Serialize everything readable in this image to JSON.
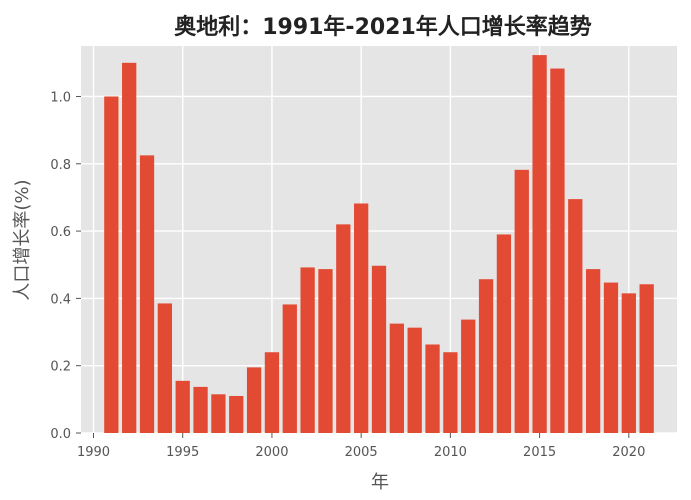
{
  "chart_data": {
    "type": "bar",
    "title": "奥地利：1991年-2021年人口增长率趋势",
    "xlabel": "年",
    "ylabel": "人口增长率(%)",
    "x": [
      1991,
      1992,
      1993,
      1994,
      1995,
      1996,
      1997,
      1998,
      1999,
      2000,
      2001,
      2002,
      2003,
      2004,
      2005,
      2006,
      2007,
      2008,
      2009,
      2010,
      2011,
      2012,
      2013,
      2014,
      2015,
      2016,
      2017,
      2018,
      2019,
      2020,
      2021
    ],
    "values": [
      1.0,
      1.1,
      0.825,
      0.385,
      0.155,
      0.137,
      0.115,
      0.11,
      0.195,
      0.24,
      0.382,
      0.492,
      0.487,
      0.62,
      0.682,
      0.497,
      0.325,
      0.313,
      0.263,
      0.24,
      0.337,
      0.457,
      0.59,
      0.782,
      1.123,
      1.083,
      0.695,
      0.487,
      0.447,
      0.415,
      0.442
    ],
    "xlim": [
      1989.3,
      1992.7
    ],
    "xlim_full": [
      1989.3,
      2022.7
    ],
    "ylim": [
      0,
      1.15
    ],
    "x_ticks": [
      1990,
      1995,
      2000,
      2005,
      2010,
      2015,
      2020
    ],
    "y_ticks": [
      0.0,
      0.2,
      0.4,
      0.6,
      0.8,
      1.0
    ],
    "y_tick_labels": [
      "0.0",
      "0.2",
      "0.4",
      "0.6",
      "0.8",
      "1.0"
    ],
    "grid": true,
    "colors": {
      "bar": "#E24A33",
      "plot_background": "#E5E5E5",
      "grid": "#FFFFFF",
      "text": "#555555",
      "title": "#222222"
    }
  }
}
